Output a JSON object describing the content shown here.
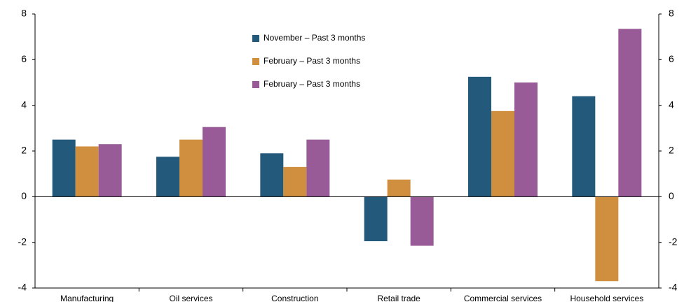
{
  "chart_data": {
    "type": "bar",
    "categories": [
      "Manufacturing",
      "Oil services",
      "Construction",
      "Retail trade",
      "Commercial services",
      "Household services"
    ],
    "series": [
      {
        "name": "November – Past 3 months",
        "color": "#235a7c",
        "values": [
          2.5,
          1.75,
          1.9,
          -1.95,
          5.25,
          4.4
        ]
      },
      {
        "name": "February – Past 3 months",
        "color": "#d08f3f",
        "values": [
          2.2,
          2.5,
          1.3,
          0.75,
          3.75,
          -3.7
        ]
      },
      {
        "name": "February – Past 3 months",
        "color": "#985b98",
        "values": [
          2.3,
          3.05,
          2.5,
          -2.15,
          5.0,
          7.35
        ]
      }
    ],
    "ylim": [
      -4,
      8
    ],
    "yticks": [
      -4,
      -2,
      0,
      2,
      4,
      6,
      8
    ],
    "y2lim": [
      -4,
      8
    ],
    "y2ticks": [
      -4,
      -2,
      0,
      2,
      4,
      6,
      8
    ],
    "grid": false
  }
}
